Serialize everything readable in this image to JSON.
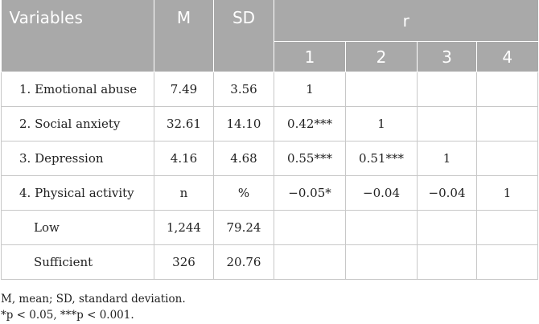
{
  "header": {
    "variables": "Variables",
    "m": "M",
    "sd": "SD",
    "r": "r",
    "r_cols": [
      "1",
      "2",
      "3",
      "4"
    ]
  },
  "rows": [
    {
      "label": "1. Emotional abuse",
      "m": "7.49",
      "sd": "3.56",
      "r1": "1",
      "r2": "",
      "r3": "",
      "r4": ""
    },
    {
      "label": "2. Social anxiety",
      "m": "32.61",
      "sd": "14.10",
      "r1": "0.42***",
      "r2": "1",
      "r3": "",
      "r4": ""
    },
    {
      "label": "3. Depression",
      "m": "4.16",
      "sd": "4.68",
      "r1": "0.55***",
      "r2": "0.51***",
      "r3": "1",
      "r4": ""
    },
    {
      "label": "4. Physical activity",
      "m": "n",
      "sd": "%",
      "r1": "−0.05*",
      "r2": "−0.04",
      "r3": "−0.04",
      "r4": "1"
    },
    {
      "label": "Low",
      "m": "1,244",
      "sd": "79.24",
      "r1": "",
      "r2": "",
      "r3": "",
      "r4": ""
    },
    {
      "label": "Sufficient",
      "m": "326",
      "sd": "20.76",
      "r1": "",
      "r2": "",
      "r3": "",
      "r4": ""
    }
  ],
  "notes": {
    "line1": "M, mean; SD, standard deviation.",
    "line2": "*p < 0.05, ***p < 0.001."
  }
}
